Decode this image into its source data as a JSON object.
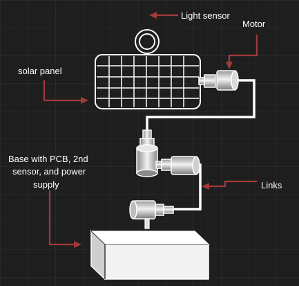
{
  "labels": {
    "light_sensor": "Light sensor",
    "motor": "Motor",
    "solar_panel": "solar panel",
    "base_line1": "Base with PCB, 2nd",
    "base_line2": "sensor, and power",
    "base_line3": "supply",
    "links": "Links"
  },
  "colors": {
    "background": "#1e1e1e",
    "grid": "#2c2c2c",
    "stroke": "#ffffff",
    "arrow": "#a23a3a"
  }
}
